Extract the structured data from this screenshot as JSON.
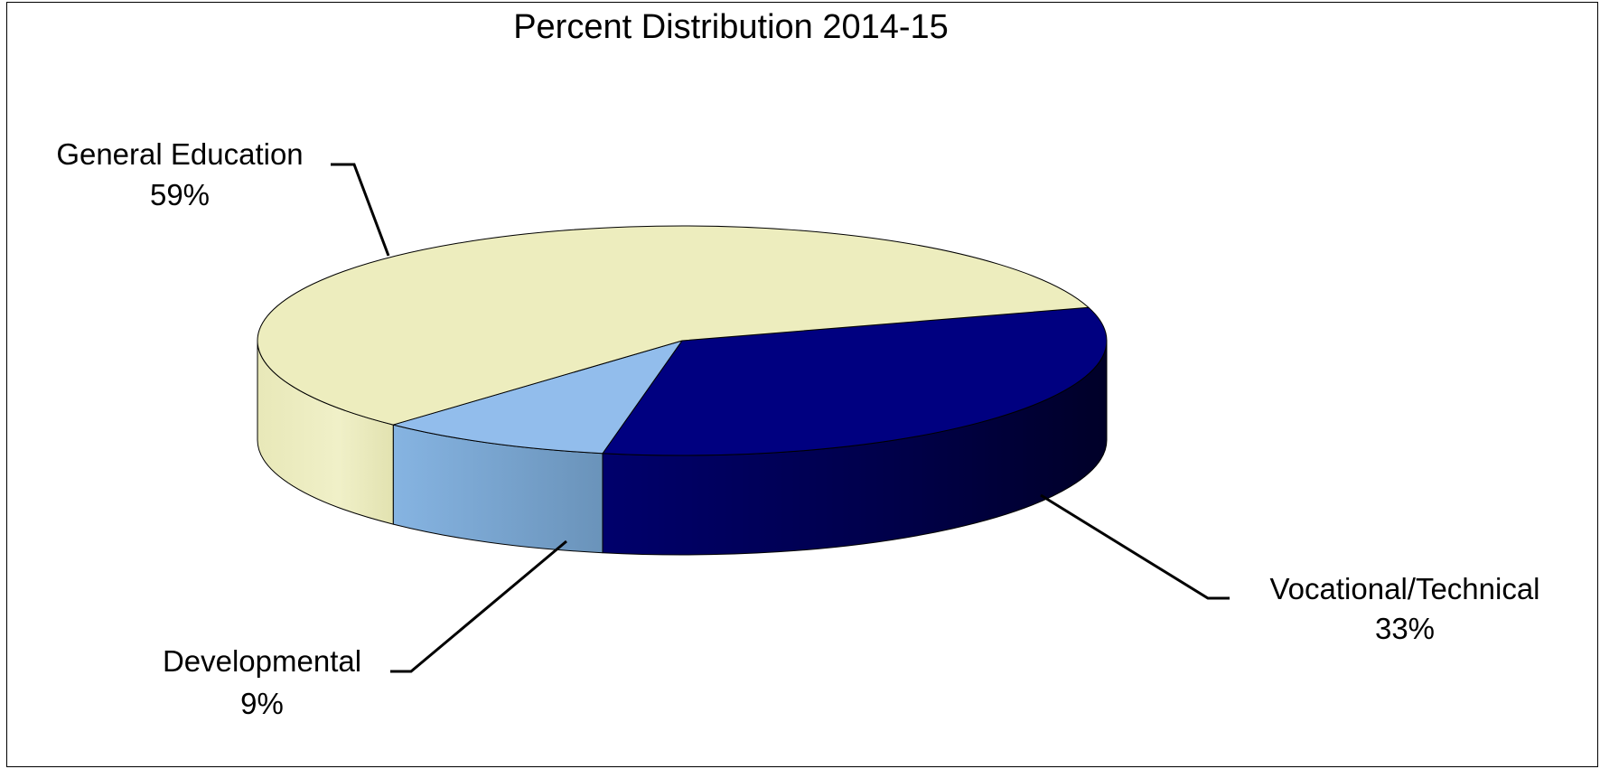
{
  "chart_data": {
    "type": "pie",
    "variant": "3d",
    "title": "Percent Distribution 2014-15",
    "slices": [
      {
        "label": "General Education",
        "value": 59,
        "value_label": "59%",
        "color": "#EDEDBE"
      },
      {
        "label": "Vocational/Technical",
        "value": 33,
        "value_label": "33%",
        "color": "#000080"
      },
      {
        "label": "Developmental",
        "value": 9,
        "value_label": "9%",
        "color": "#92BDEC"
      }
    ],
    "legend": "none",
    "data_labels": "outside with leader lines"
  }
}
